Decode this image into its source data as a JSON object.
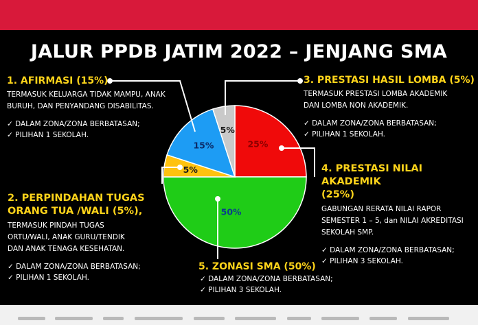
{
  "title": "JALUR PPDB JATIM 2022 – JENJANG SMA",
  "chart_data": {
    "type": "pie",
    "title": "JALUR PPDB JATIM 2022 – JENJANG SMA",
    "slices": [
      {
        "label": "25%",
        "value": 25,
        "color": "#f00a0a"
      },
      {
        "label": "50%",
        "value": 50,
        "color": "#1fcc17"
      },
      {
        "label": "5%",
        "value": 5,
        "color": "#ffc20e"
      },
      {
        "label": "15%",
        "value": 15,
        "color": "#1d9cf4"
      },
      {
        "label": "5%",
        "value": 5,
        "color": "#c9c9c9"
      }
    ]
  },
  "sections": {
    "afirmasi": {
      "title": "1. AFIRMASI (15%)",
      "desc": [
        "TERMASUK KELUARGA TIDAK MAMPU, ANAK",
        "BURUH, DAN PENYANDANG DISABILITAS."
      ],
      "bullets": [
        "✓  DALAM ZONA/ZONA BERBATASAN;",
        "✓  PILIHAN 1 SEKOLAH."
      ]
    },
    "lomba": {
      "title": "3. PRESTASI HASIL LOMBA (5%)",
      "desc": [
        "TERMASUK PRESTASI LOMBA AKADEMIK",
        "DAN LOMBA NON AKADEMIK."
      ],
      "bullets": [
        "✓  DALAM ZONA/ZONA BERBATASAN;",
        "✓  PILIHAN 1 SEKOLAH."
      ]
    },
    "akademik": {
      "title": [
        "4. PRESTASI NILAI AKADEMIK",
        "(25%)"
      ],
      "desc": [
        "GABUNGAN RERATA NILAI RAPOR",
        "SEMESTER 1 – 5, dan NILAI AKREDITASI",
        "SEKOLAH SMP."
      ],
      "bullets": [
        "✓  DALAM ZONA/ZONA BERBATASAN;",
        "✓  PILIHAN 3 SEKOLAH."
      ]
    },
    "perpindahan": {
      "title": [
        "2. PERPINDAHAN TUGAS",
        "ORANG TUA /WALI (5%),"
      ],
      "desc": [
        "TERMASUK PINDAH TUGAS",
        "ORTU/WALI, ANAK GURU/TENDIK",
        "DAN ANAK TENAGA KESEHATAN."
      ],
      "bullets": [
        "✓  DALAM ZONA/ZONA BERBATASAN;",
        "✓  PILIHAN 1 SEKOLAH."
      ]
    },
    "zonasi": {
      "title": "5. ZONASI SMA (50%)",
      "bullets": [
        "✓  DALAM ZONA/ZONA BERBATASAN;",
        "✓  PILIHAN 3 SEKOLAH."
      ]
    }
  }
}
